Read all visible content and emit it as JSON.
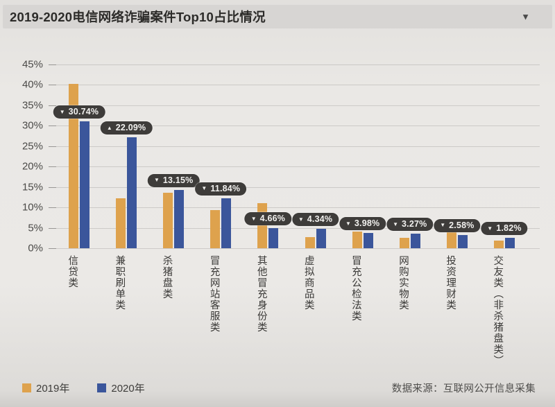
{
  "header": {
    "title": "2019-2020电信网络诈骗案件Top10占比情况",
    "collapse_icon": "▼"
  },
  "chart_data": {
    "type": "bar",
    "title": "2019-2020电信网络诈骗案件Top10占比情况",
    "categories": [
      "信贷类",
      "兼职刷单类",
      "杀猪盘类",
      "冒充网站客服类",
      "其他冒充身份类",
      "虚拟商品类",
      "冒充公检法类",
      "网购实物类",
      "投资理财类",
      "交友类（非杀猪盘类）"
    ],
    "series": [
      {
        "name": "2019年",
        "color": "#dea24d",
        "values": [
          40.3,
          12.3,
          13.6,
          9.3,
          11.0,
          2.7,
          4.0,
          2.6,
          3.9,
          1.9
        ]
      },
      {
        "name": "2020年",
        "color": "#3b569b",
        "values": [
          31.0,
          27.1,
          14.3,
          12.3,
          4.9,
          4.7,
          3.7,
          3.5,
          3.3,
          2.5
        ]
      }
    ],
    "point_labels": [
      {
        "arrow": "▼",
        "text": "30.74%"
      },
      {
        "arrow": "▲",
        "text": "22.09%"
      },
      {
        "arrow": "▼",
        "text": "13.15%"
      },
      {
        "arrow": "▼",
        "text": "11.84%"
      },
      {
        "arrow": "▼",
        "text": "4.66%"
      },
      {
        "arrow": "▼",
        "text": "4.34%"
      },
      {
        "arrow": "▼",
        "text": "3.98%"
      },
      {
        "arrow": "▼",
        "text": "3.27%"
      },
      {
        "arrow": "▼",
        "text": "2.58%"
      },
      {
        "arrow": "▼",
        "text": "1.82%"
      }
    ],
    "y_ticks": [
      "45%",
      "40%",
      "35%",
      "30%",
      "25%",
      "20%",
      "15%",
      "10%",
      "5%",
      "0%"
    ],
    "ylim": [
      0,
      45
    ],
    "xlabel": "",
    "ylabel": "",
    "grid": true,
    "legend_position": "bottom-left",
    "colors": {
      "bar_2019": "#dea24d",
      "bar_2020": "#3b569b",
      "label_pill_bg": "#3e3c3a",
      "label_pill_text": "#f2f1ef"
    }
  },
  "footer": {
    "source": "数据来源：互联网公开信息采集"
  }
}
